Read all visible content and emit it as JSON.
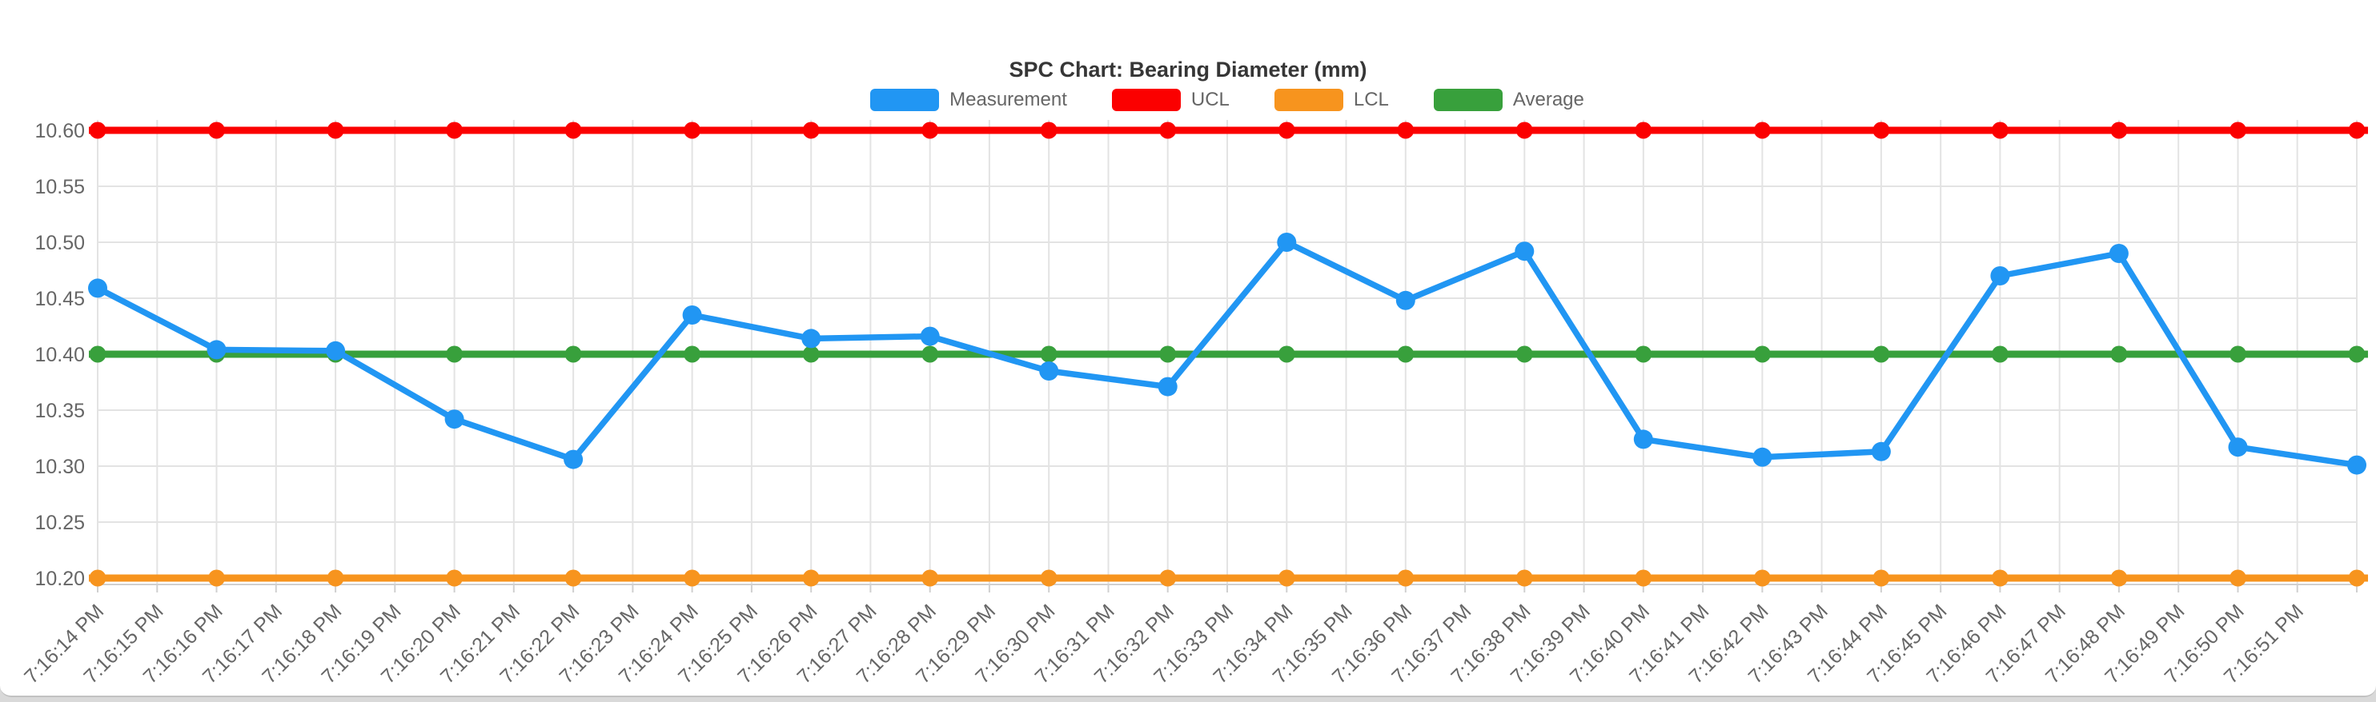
{
  "page": {
    "background_color": "#D9D9D9",
    "card_color": "#FFFFFF"
  },
  "chart_data": {
    "type": "line",
    "title": "SPC Chart: Bearing Diameter (mm)",
    "legend_position": "top",
    "grid": true,
    "x_labels": [
      "7:16:14 PM",
      "7:16:15 PM",
      "7:16:16 PM",
      "7:16:17 PM",
      "7:16:18 PM",
      "7:16:19 PM",
      "7:16:20 PM",
      "7:16:21 PM",
      "7:16:22 PM",
      "7:16:23 PM",
      "7:16:24 PM",
      "7:16:25 PM",
      "7:16:26 PM",
      "7:16:27 PM",
      "7:16:28 PM",
      "7:16:29 PM",
      "7:16:30 PM",
      "7:16:31 PM",
      "7:16:32 PM",
      "7:16:33 PM",
      "7:16:34 PM",
      "7:16:35 PM",
      "7:16:36 PM",
      "7:16:37 PM",
      "7:16:38 PM",
      "7:16:39 PM",
      "7:16:40 PM",
      "7:16:41 PM",
      "7:16:42 PM",
      "7:16:43 PM",
      "7:16:44 PM",
      "7:16:45 PM",
      "7:16:46 PM",
      "7:16:47 PM",
      "7:16:48 PM",
      "7:16:49 PM",
      "7:16:50 PM",
      "7:16:51 PM"
    ],
    "y_ticks": [
      "10.60",
      "10.55",
      "10.50",
      "10.45",
      "10.40",
      "10.35",
      "10.30",
      "10.25",
      "10.20"
    ],
    "ylim": [
      10.194,
      10.609
    ],
    "x_layout": {
      "label_count": 38,
      "point_count": 20,
      "points_evenly_spread": true
    },
    "series": [
      {
        "name": "Measurement",
        "color": "#2196F3",
        "values": [
          10.459,
          10.404,
          10.403,
          10.342,
          10.306,
          10.435,
          10.414,
          10.416,
          10.385,
          10.371,
          10.5,
          10.448,
          10.492,
          10.324,
          10.308,
          10.313,
          10.47,
          10.49,
          10.317,
          10.301
        ]
      },
      {
        "name": "UCL",
        "color": "#FB0000",
        "constant": 10.6,
        "point_count": 20
      },
      {
        "name": "LCL",
        "color": "#F7941E",
        "constant": 10.2,
        "point_count": 20
      },
      {
        "name": "Average",
        "color": "#38A03C",
        "constant": 10.4,
        "point_count": 20
      }
    ],
    "style": {
      "grid_color": "#E3E3E3",
      "axis_color": "#D0D0D0",
      "tick_text_color": "#666666",
      "title_color": "#363636",
      "line_width_measurement": 7.5,
      "line_width_limits": 9,
      "point_radius_measurement": 12,
      "point_radius_limits": 10.5
    }
  }
}
